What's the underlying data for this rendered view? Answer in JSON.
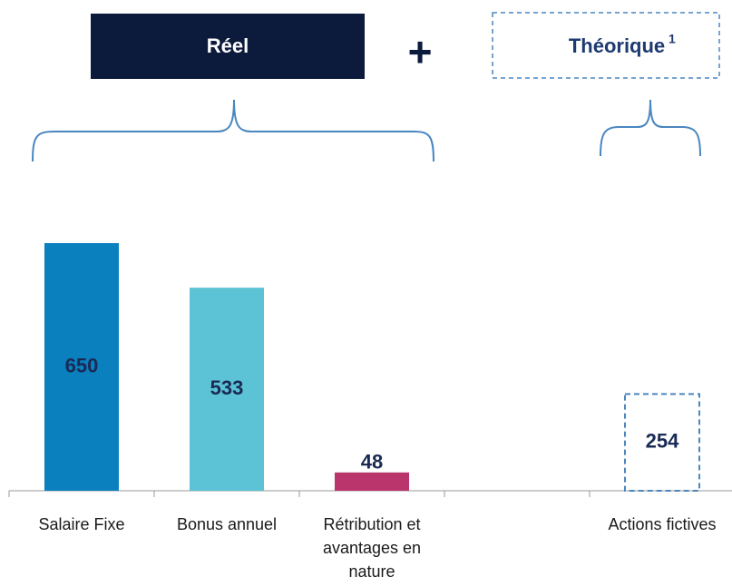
{
  "chart_data": {
    "type": "bar",
    "annotations": {
      "left_label": "Réel",
      "operator": "+",
      "right_label": "Théorique",
      "right_footnote": "1"
    },
    "categories": [
      "Salaire Fixe",
      "Bonus annuel",
      "Rétribution et avantages en nature",
      null,
      "Actions fictives"
    ],
    "values": [
      650,
      533,
      48,
      null,
      254
    ],
    "colors": [
      "#0a80be",
      "#5bc3d5",
      "#b9356b",
      null,
      "#4a86c0"
    ],
    "bar_styles": [
      "solid",
      "solid",
      "solid",
      null,
      "dashed"
    ]
  }
}
